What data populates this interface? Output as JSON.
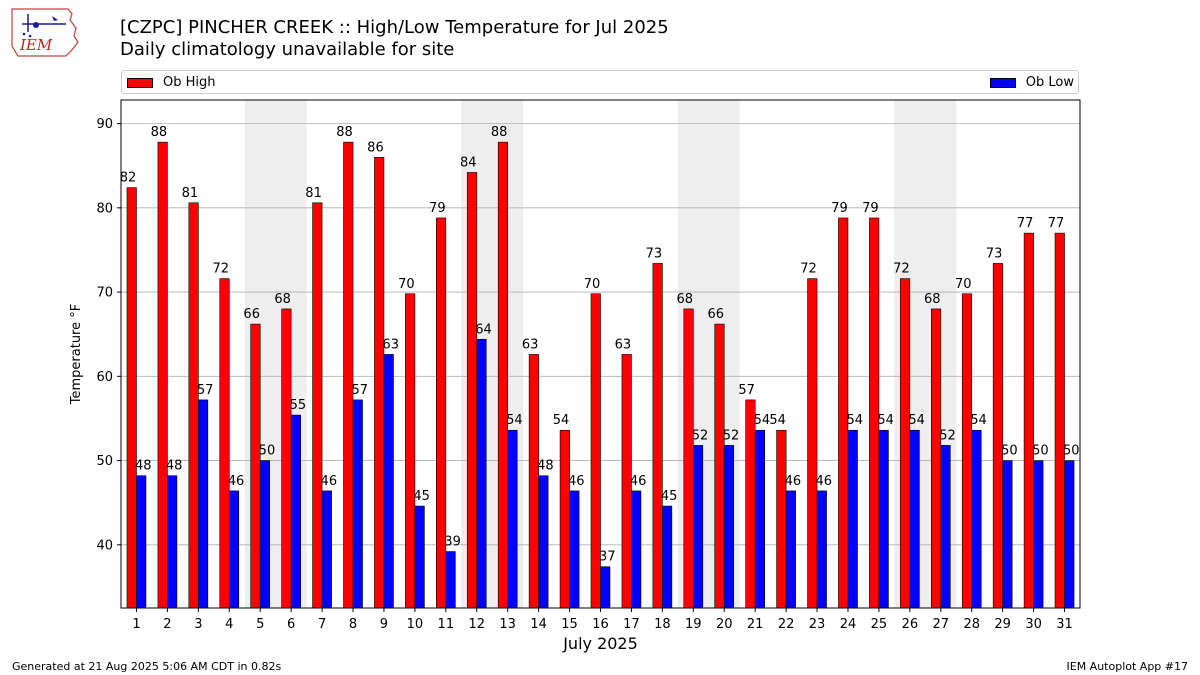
{
  "header": {
    "title_line1": "[CZPC] PINCHER CREEK :: High/Low Temperature for Jul 2025",
    "title_line2": "Daily climatology unavailable for site",
    "logo_text": "IEM"
  },
  "legend": {
    "high_label": "Ob High",
    "low_label": "Ob Low"
  },
  "footer": {
    "generated": "Generated at 21 Aug 2025 5:06 AM CDT in 0.82s",
    "app": "IEM Autoplot App #17"
  },
  "colors": {
    "high": "#ff0000",
    "low": "#0000ff",
    "weekend_band": "#eeeeee",
    "grid": "#b0b0b0"
  },
  "chart_data": {
    "type": "bar",
    "title": "[CZPC] PINCHER CREEK :: High/Low Temperature for Jul 2025",
    "subtitle": "Daily climatology unavailable for site",
    "xlabel": "July 2025",
    "ylabel": "Temperature °F",
    "ylim": [
      32.5,
      92.8
    ],
    "yticks": [
      40,
      50,
      60,
      70,
      80,
      90
    ],
    "grid": "horizontal",
    "legend": "top",
    "categories": [
      "1",
      "2",
      "3",
      "4",
      "5",
      "6",
      "7",
      "8",
      "9",
      "10",
      "11",
      "12",
      "13",
      "14",
      "15",
      "16",
      "17",
      "18",
      "19",
      "20",
      "21",
      "22",
      "23",
      "24",
      "25",
      "26",
      "27",
      "28",
      "29",
      "30",
      "31"
    ],
    "weekend_days": [
      5,
      6,
      12,
      13,
      19,
      20,
      26,
      27
    ],
    "series": [
      {
        "name": "Ob High",
        "values": [
          82.4,
          87.8,
          80.6,
          71.6,
          66.2,
          68.0,
          80.6,
          87.8,
          86.0,
          69.8,
          78.8,
          84.2,
          87.8,
          62.6,
          53.6,
          69.8,
          62.6,
          73.4,
          68.0,
          66.2,
          57.2,
          53.6,
          71.6,
          78.8,
          78.8,
          71.6,
          68.0,
          69.8,
          73.4,
          77.0,
          77.0
        ],
        "labels": [
          "82",
          "88",
          "81",
          "72",
          "66",
          "68",
          "81",
          "88",
          "86",
          "70",
          "79",
          "84",
          "88",
          "63",
          "54",
          "70",
          "63",
          "73",
          "68",
          "66",
          "57",
          "54",
          "72",
          "79",
          "79",
          "72",
          "68",
          "70",
          "73",
          "77",
          "77"
        ]
      },
      {
        "name": "Ob Low",
        "values": [
          48.2,
          48.2,
          57.2,
          46.4,
          50.0,
          55.4,
          46.4,
          57.2,
          62.6,
          44.6,
          39.2,
          64.4,
          53.6,
          48.2,
          46.4,
          37.4,
          46.4,
          44.6,
          51.8,
          51.8,
          53.6,
          46.4,
          46.4,
          53.6,
          53.6,
          53.6,
          51.8,
          53.6,
          50.0,
          50.0,
          50.0
        ],
        "labels": [
          "48",
          "48",
          "57",
          "46",
          "50",
          "55",
          "46",
          "57",
          "63",
          "45",
          "39",
          "64",
          "54",
          "48",
          "46",
          "37",
          "46",
          "45",
          "52",
          "52",
          "54",
          "46",
          "46",
          "54",
          "54",
          "54",
          "52",
          "54",
          "50",
          "50",
          "50"
        ]
      }
    ]
  }
}
